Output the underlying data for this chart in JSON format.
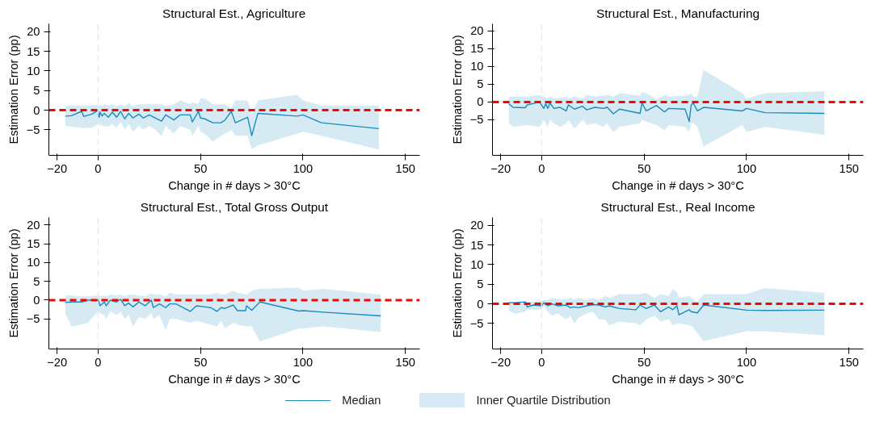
{
  "chart_data": [
    {
      "type": "line",
      "title": "Structural Est., Agriculture",
      "xlabel": "Change in # days > 30°C",
      "ylabel": "Estimation Error (pp)",
      "xlim": [
        -24,
        157
      ],
      "ylim": [
        -11.5,
        22
      ],
      "xticks": [
        -20,
        0,
        50,
        100,
        150
      ],
      "yticks": [
        -5,
        0,
        5,
        10,
        15,
        20
      ],
      "grid": false,
      "ref_lines": [
        {
          "axis": "y",
          "value": 0,
          "color": "#ff0000",
          "line_style": "dashed"
        },
        {
          "axis": "x",
          "value": 0,
          "color": "#e6e6e6",
          "line_style": "dashed"
        }
      ],
      "x": [
        -16,
        -13,
        -8,
        -7,
        -3,
        0,
        0.5,
        1,
        2,
        3,
        5,
        7,
        9,
        11,
        13,
        15,
        17,
        20,
        22,
        25,
        28,
        31,
        33,
        37,
        40,
        45,
        46,
        49,
        50,
        52,
        56,
        60,
        62,
        65,
        67,
        73,
        75,
        78,
        97,
        100,
        109,
        137
      ],
      "series": [
        {
          "color": "#1a8bbf",
          "values": [
            -1.5,
            -1.4,
            -0.3,
            -1.6,
            -1.0,
            0,
            -1.8,
            -0.5,
            -1.5,
            -0.8,
            -1.8,
            -0.5,
            -1.8,
            -0.3,
            -2.2,
            -0.8,
            -2,
            -1,
            -2,
            -1.2,
            -2,
            -2.8,
            -1.2,
            -2.5,
            -1.2,
            -1.2,
            -3,
            -0.3,
            -2,
            -2.2,
            -3.2,
            -3.2,
            -2.5,
            -0.3,
            -3.2,
            -1.8,
            -6.5,
            -0.8,
            -1.5,
            -1.2,
            -3.2,
            -4.7
          ],
          "lower": [
            -4,
            -4.2,
            -4.5,
            -4.5,
            -4.5,
            -3.5,
            -4,
            -3.5,
            -4,
            -4,
            -4.2,
            -3.5,
            -4.5,
            -3,
            -5,
            -3.5,
            -5.5,
            -4,
            -5,
            -4,
            -5,
            -6.5,
            -4,
            -6,
            -4,
            -5,
            -6.5,
            -4,
            -5.5,
            -6,
            -8,
            -6.5,
            -6,
            -5,
            -6.5,
            -6.5,
            -10,
            -9,
            -6,
            -5.5,
            -6.5,
            -10
          ],
          "upper": [
            1,
            1.2,
            1.2,
            1.2,
            1.3,
            1.3,
            1,
            1.5,
            1,
            1.5,
            1.2,
            1.5,
            1,
            1.5,
            1,
            1.8,
            1,
            1.5,
            1.5,
            1.5,
            1.5,
            1.5,
            1,
            1.5,
            2.5,
            1.5,
            2,
            1.5,
            3,
            3,
            1.5,
            1.5,
            1.5,
            0.5,
            2.5,
            2.5,
            -1,
            2.5,
            3.9,
            2.5,
            1.2,
            1.2
          ]
        }
      ]
    },
    {
      "type": "line",
      "title": "Structural Est., Manufacturing",
      "xlabel": "Change in # days > 30°C",
      "ylabel": "Estimation Error (pp)",
      "xlim": [
        -24,
        157
      ],
      "ylim": [
        -15,
        22
      ],
      "xticks": [
        -20,
        0,
        50,
        100,
        150
      ],
      "yticks": [
        -5,
        0,
        5,
        10,
        15,
        20
      ],
      "grid": false,
      "ref_lines": [
        {
          "axis": "y",
          "value": 0,
          "color": "#ff0000",
          "line_style": "dashed"
        },
        {
          "axis": "x",
          "value": 0,
          "color": "#e6e6e6",
          "line_style": "dashed"
        }
      ],
      "x": [
        -16,
        -14,
        -8,
        -7,
        -1,
        1,
        2,
        3,
        4,
        6,
        9,
        12,
        13,
        16,
        20,
        22,
        26,
        30,
        32,
        35,
        38,
        48,
        49,
        51,
        56,
        60,
        62,
        70,
        72,
        73,
        74,
        76,
        79,
        98,
        100,
        109,
        138
      ],
      "series": [
        {
          "color": "#1a8bbf",
          "values": [
            -0.5,
            -1.5,
            -1.6,
            -0.8,
            0,
            -1.8,
            -0.5,
            -1.8,
            -0.3,
            -1.8,
            -1.5,
            -2.5,
            -0.8,
            -2,
            -1.2,
            -2.2,
            -1.5,
            -1.8,
            -1.5,
            -3.3,
            -2,
            -3.2,
            -0.3,
            -2.5,
            -1,
            -2.8,
            -1.8,
            -2,
            -5.5,
            -0.8,
            -0.3,
            -2.5,
            -1.5,
            -2.5,
            -1.8,
            -3,
            -3.2
          ],
          "lower": [
            -6,
            -7,
            -6.5,
            -6.5,
            -7,
            -5,
            -6,
            -7,
            -5,
            -6,
            -7,
            -6,
            -5,
            -7.5,
            -5,
            -6.5,
            -6,
            -7,
            -6,
            -8.5,
            -7,
            -6,
            -5,
            -5.5,
            -6.5,
            -8,
            -6.5,
            -7,
            -8.5,
            -6,
            -6,
            -7,
            -12.5,
            -6.5,
            -8.5,
            -7,
            -9.2
          ],
          "upper": [
            1.5,
            1.5,
            1.5,
            1.5,
            2,
            1.5,
            1.2,
            1,
            1.5,
            1,
            1.2,
            1.5,
            1,
            1.5,
            1,
            2,
            1.5,
            1.8,
            2,
            1.5,
            2.5,
            1.8,
            2.8,
            2.5,
            0.8,
            2,
            1.5,
            1.8,
            2,
            2.5,
            1.5,
            1.5,
            9,
            2.5,
            1,
            2.5,
            3
          ]
        }
      ]
    },
    {
      "type": "line",
      "title": "Structural Est., Total Gross Output",
      "xlabel": "Change in # days > 30°C",
      "ylabel": "Estimation Error (pp)",
      "xlim": [
        -24,
        157
      ],
      "ylim": [
        -13,
        22
      ],
      "xticks": [
        -20,
        0,
        50,
        100,
        150
      ],
      "yticks": [
        -5,
        0,
        5,
        10,
        15,
        20
      ],
      "grid": false,
      "ref_lines": [
        {
          "axis": "y",
          "value": 0,
          "color": "#ff0000",
          "line_style": "dashed"
        },
        {
          "axis": "x",
          "value": 0,
          "color": "#e6e6e6",
          "line_style": "dashed"
        }
      ],
      "x": [
        -16,
        -13,
        -8,
        -5,
        0,
        1,
        3,
        4,
        6,
        9,
        11,
        13,
        15,
        17,
        20,
        23,
        26,
        27,
        30,
        33,
        35,
        38,
        45,
        48,
        55,
        58,
        60,
        62,
        66,
        68,
        72,
        72.5,
        75,
        79,
        98,
        100,
        110,
        138
      ],
      "series": [
        {
          "color": "#1a8bbf",
          "values": [
            -0.6,
            -0.5,
            -0.5,
            0,
            0,
            -1.5,
            -0.5,
            -1.5,
            0,
            -0.5,
            0.2,
            -1.5,
            -0.8,
            -1.8,
            -0.5,
            -1.5,
            0,
            -2,
            -1,
            -2,
            -1,
            -1,
            -3,
            -1.5,
            -2,
            -3,
            -2,
            -2.2,
            -1.3,
            -2.8,
            -2.8,
            -1.5,
            -2.7,
            -0.5,
            -2.9,
            -2.8,
            -3.2,
            -4.2
          ],
          "lower": [
            -3.5,
            -7,
            -6.5,
            -6,
            -3,
            -3.5,
            -4,
            -5,
            -3,
            -4,
            -3,
            -5,
            -4,
            -7,
            -4.5,
            -5,
            -3.5,
            -5,
            -4,
            -8,
            -5,
            -5,
            -6,
            -5.5,
            -6.5,
            -7,
            -5.5,
            -7.5,
            -6,
            -6.5,
            -7,
            -7,
            -7,
            -11,
            -7.5,
            -7.5,
            -7,
            -8.5
          ],
          "upper": [
            1.3,
            1.3,
            1,
            1,
            1.3,
            1,
            1.2,
            1,
            1.5,
            1.2,
            1.5,
            1,
            1.5,
            1.5,
            1.2,
            1,
            1.8,
            1.5,
            1.5,
            1,
            2,
            1.5,
            1.5,
            1.5,
            1.5,
            2,
            1.5,
            1.5,
            2.5,
            2,
            1.5,
            1.5,
            2.5,
            3,
            3.3,
            2.5,
            3,
            1.5
          ]
        }
      ]
    },
    {
      "type": "line",
      "title": "Structural Est., Real Income",
      "xlabel": "Change in # days > 30°C",
      "ylabel": "Estimation Error (pp)",
      "xlim": [
        -24,
        157
      ],
      "ylim": [
        -11.5,
        22
      ],
      "xticks": [
        -20,
        0,
        50,
        100,
        150
      ],
      "yticks": [
        -5,
        0,
        5,
        10,
        15,
        20
      ],
      "grid": false,
      "legend": "bottom",
      "annotations": [
        "Inner Quartile Distribution"
      ],
      "ref_lines": [
        {
          "axis": "y",
          "value": 0,
          "color": "#ff0000",
          "line_style": "dashed"
        },
        {
          "axis": "x",
          "value": 0,
          "color": "#e6e6e6",
          "line_style": "dashed"
        }
      ],
      "x": [
        -16,
        -13,
        -8,
        -7,
        -4,
        0,
        1,
        3,
        5,
        8,
        12,
        14,
        16,
        18,
        22,
        25,
        28,
        31,
        33,
        38,
        46,
        48,
        51,
        55,
        58,
        62,
        64,
        66,
        67,
        72,
        73,
        76,
        79,
        100,
        109,
        138
      ],
      "series": [
        {
          "name": "Median",
          "color": "#1a8bbf",
          "values": [
            0.3,
            0.3,
            0.5,
            -0.8,
            -0.3,
            -0.5,
            0.3,
            -0.5,
            0,
            -0.5,
            -0.3,
            -1,
            -0.8,
            -1,
            -0.5,
            -0.2,
            -0.3,
            -0.8,
            -0.5,
            -1.2,
            -1.5,
            -0.3,
            -1.2,
            -0.3,
            -2,
            -0.8,
            -1.5,
            -0.5,
            -2.8,
            -1.5,
            -2,
            -2.3,
            -0.3,
            -1.6,
            -1.7,
            -1.6
          ],
          "lower": [
            -1.8,
            -2.5,
            -2,
            -1.5,
            -1.5,
            -1.5,
            -0.5,
            -2,
            -3,
            -2.5,
            -4,
            -3,
            -5,
            -3.5,
            -2.5,
            -2,
            -4,
            -4,
            -5.5,
            -4.5,
            -5,
            -5.5,
            -4,
            -3,
            -4.5,
            -4,
            -5.5,
            -5,
            -5,
            -5.5,
            -5.5,
            -7.5,
            -9.5,
            -7,
            -7,
            -8
          ],
          "upper": [
            0.5,
            0.5,
            0.6,
            0.5,
            0.5,
            0.8,
            1,
            1,
            1.5,
            1.2,
            1.2,
            1.5,
            1,
            1.5,
            1,
            1.5,
            1,
            2,
            1.5,
            2.5,
            2.5,
            2.5,
            2.8,
            1.5,
            2.5,
            2,
            3.8,
            3,
            1.5,
            2,
            1.5,
            0.5,
            2.5,
            2.5,
            4,
            2.8
          ]
        }
      ]
    }
  ]
}
